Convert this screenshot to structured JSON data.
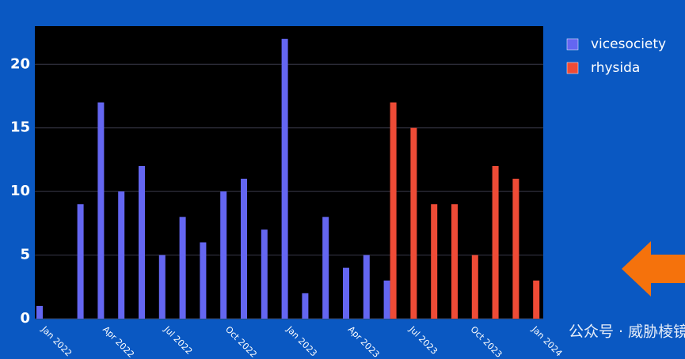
{
  "chart_data": {
    "type": "bar",
    "categories": [
      "Jan 2022",
      null,
      null,
      "Apr 2022",
      null,
      null,
      "Jul 2022",
      null,
      null,
      "Oct 2022",
      null,
      null,
      "Jan 2023",
      null,
      null,
      "Apr 2023",
      null,
      null,
      "Jul 2023",
      null,
      null,
      "Oct 2023",
      null,
      null,
      "Jan 2024"
    ],
    "series": [
      {
        "name": "vicesociety",
        "color": "#6466f1",
        "values": [
          1,
          null,
          9,
          17,
          10,
          12,
          5,
          8,
          6,
          10,
          11,
          7,
          22,
          2,
          8,
          4,
          5,
          3,
          null,
          null,
          null,
          null,
          null,
          null,
          null
        ]
      },
      {
        "name": "rhysida",
        "color": "#ee4b36",
        "values": [
          null,
          null,
          null,
          null,
          null,
          null,
          null,
          null,
          null,
          null,
          null,
          null,
          null,
          null,
          null,
          null,
          null,
          17,
          15,
          9,
          9,
          5,
          12,
          11,
          3
        ]
      }
    ],
    "ylim": [
      0,
      23
    ],
    "yticks": [
      0,
      5,
      10,
      15,
      20
    ],
    "grid": true,
    "legend": "right",
    "watermark": "公众号 · 威胁棱镜"
  }
}
